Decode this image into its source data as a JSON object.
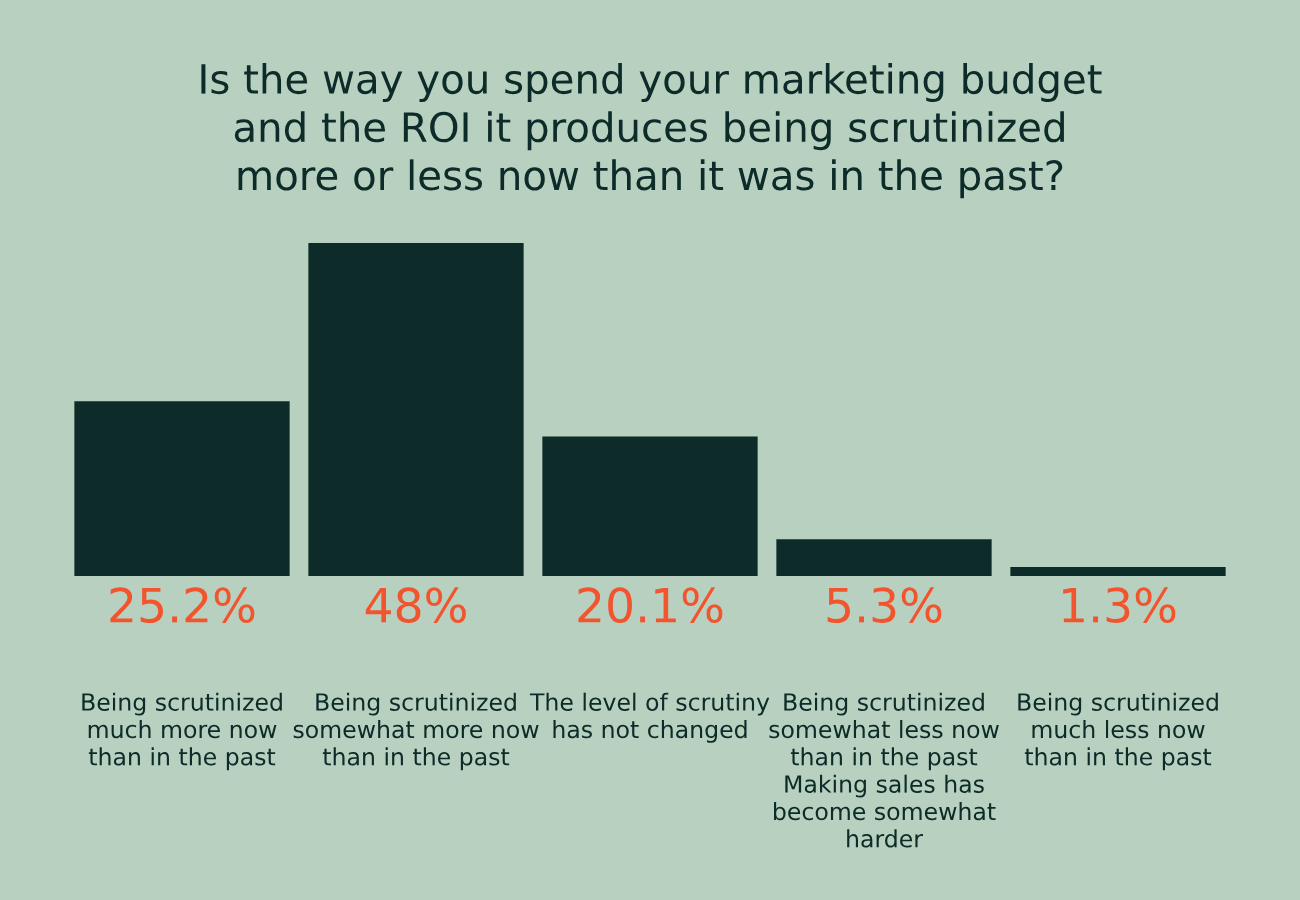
{
  "chart_data": {
    "type": "bar",
    "title": "Is the way you spend your marketing budget\nand the ROI it produces being scrutinized\nmore or less now than it was in the past?",
    "categories": [
      "Being scrutinized\nmuch more now\nthan in the past",
      "Being scrutinized\nsomewhat more now\nthan in the past",
      "The level of scrutiny\nhas not changed",
      "Being scrutinized\nsomewhat less now\nthan in the past\nMaking sales has\nbecome somewhat\nharder",
      "Being scrutinized\nmuch less now\nthan in the past"
    ],
    "values": [
      25.2,
      48,
      20.1,
      5.3,
      1.3
    ],
    "value_labels": [
      "25.2%",
      "48%",
      "20.1%",
      "5.3%",
      "1.3%"
    ],
    "color": "#0c2b29",
    "grid": false,
    "legend": false
  }
}
